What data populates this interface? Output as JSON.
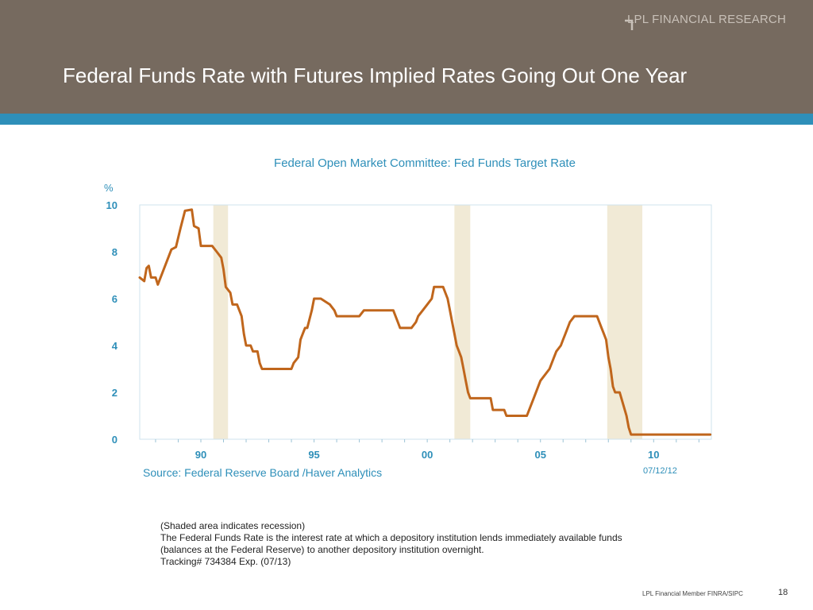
{
  "header": {
    "brand": "LPL FINANCIAL RESEARCH",
    "title": "Federal Funds Rate with Futures Implied Rates Going Out One Year",
    "bg_color": "#766a5f",
    "stripe_color": "#2e8fb9"
  },
  "chart_data": {
    "type": "line",
    "title": "Federal Open Market Committee: Fed Funds Target Rate",
    "ylabel": "%",
    "xlabel": "",
    "ylim": [
      0,
      10
    ],
    "xlim": [
      1987.3,
      2012.55
    ],
    "y_ticks": [
      0,
      2,
      4,
      6,
      8,
      10
    ],
    "x_ticks": [
      {
        "year": 1990,
        "label": "90"
      },
      {
        "year": 1995,
        "label": "95"
      },
      {
        "year": 2000,
        "label": "00"
      },
      {
        "year": 2005,
        "label": "05"
      },
      {
        "year": 2010,
        "label": "10"
      }
    ],
    "grid": false,
    "line_color": "#c0661c",
    "recession_color": "#f1ead6",
    "recessions": [
      [
        1990.55,
        1991.2
      ],
      [
        2001.2,
        2001.9
      ],
      [
        2007.95,
        2009.5
      ]
    ],
    "series": [
      {
        "x": [
          1987.3,
          1987.5,
          1987.6,
          1987.7,
          1987.8,
          1988.0,
          1988.1,
          1988.5,
          1988.7,
          1988.9,
          1989.1,
          1989.3,
          1989.6,
          1989.7,
          1989.9,
          1990.0,
          1990.2,
          1990.5,
          1990.7,
          1990.9,
          1991.0,
          1991.1,
          1991.3,
          1991.4,
          1991.6,
          1991.8,
          1991.9,
          1992.0,
          1992.2,
          1992.3,
          1992.5,
          1992.6,
          1992.7,
          1992.8,
          1993.0,
          1994.0,
          1994.1,
          1994.3,
          1994.4,
          1994.6,
          1994.7,
          1994.9,
          1995.0,
          1995.3,
          1995.7,
          1995.9,
          1996.0,
          1997.0,
          1997.2,
          1998.5,
          1998.7,
          1998.8,
          1998.9,
          1999.3,
          1999.5,
          1999.6,
          1999.8,
          2000.0,
          2000.2,
          2000.3,
          2000.7,
          2000.9,
          2001.0,
          2001.1,
          2001.2,
          2001.3,
          2001.4,
          2001.5,
          2001.6,
          2001.7,
          2001.8,
          2001.9,
          2002.8,
          2002.9,
          2003.4,
          2003.5,
          2004.4,
          2004.5,
          2004.7,
          2004.9,
          2005.0,
          2005.2,
          2005.4,
          2005.6,
          2005.7,
          2005.9,
          2006.0,
          2006.1,
          2006.3,
          2006.5,
          2007.5,
          2007.7,
          2007.8,
          2007.9,
          2008.0,
          2008.1,
          2008.2,
          2008.3,
          2008.5,
          2008.8,
          2008.9,
          2009.0,
          2012.5
        ],
        "y": [
          6.9,
          6.75,
          7.3,
          7.4,
          6.9,
          6.9,
          6.6,
          7.6,
          8.1,
          8.2,
          9.0,
          9.75,
          9.8,
          9.1,
          9.0,
          8.25,
          8.25,
          8.25,
          8.0,
          7.75,
          7.25,
          6.5,
          6.25,
          5.75,
          5.75,
          5.25,
          4.5,
          4.0,
          4.0,
          3.75,
          3.75,
          3.25,
          3.0,
          3.0,
          3.0,
          3.0,
          3.25,
          3.5,
          4.25,
          4.75,
          4.75,
          5.5,
          6.0,
          6.0,
          5.75,
          5.5,
          5.25,
          5.25,
          5.5,
          5.5,
          5.0,
          4.75,
          4.75,
          4.75,
          5.0,
          5.25,
          5.5,
          5.75,
          6.0,
          6.5,
          6.5,
          6.0,
          5.5,
          5.0,
          4.5,
          4.0,
          3.75,
          3.5,
          3.0,
          2.5,
          2.0,
          1.75,
          1.75,
          1.25,
          1.25,
          1.0,
          1.0,
          1.25,
          1.75,
          2.25,
          2.5,
          2.75,
          3.0,
          3.5,
          3.75,
          4.0,
          4.25,
          4.5,
          5.0,
          5.25,
          5.25,
          4.75,
          4.5,
          4.25,
          3.5,
          3.0,
          2.25,
          2.0,
          2.0,
          1.0,
          0.5,
          0.2,
          0.2
        ]
      }
    ]
  },
  "source": "Source:  Federal Reserve Board /Haver Analytics",
  "date": "07/12/12",
  "notes": [
    "(Shaded area indicates recession)",
    "The Federal Funds Rate is the interest rate at which a depository institution lends immediately available funds",
    "(balances at the Federal Reserve) to another depository institution overnight.",
    "",
    "Tracking# 734384 Exp. (07/13)"
  ],
  "footer": {
    "member_text": "LPL Financial Member FINRA/SIPC",
    "page_number": "18"
  }
}
